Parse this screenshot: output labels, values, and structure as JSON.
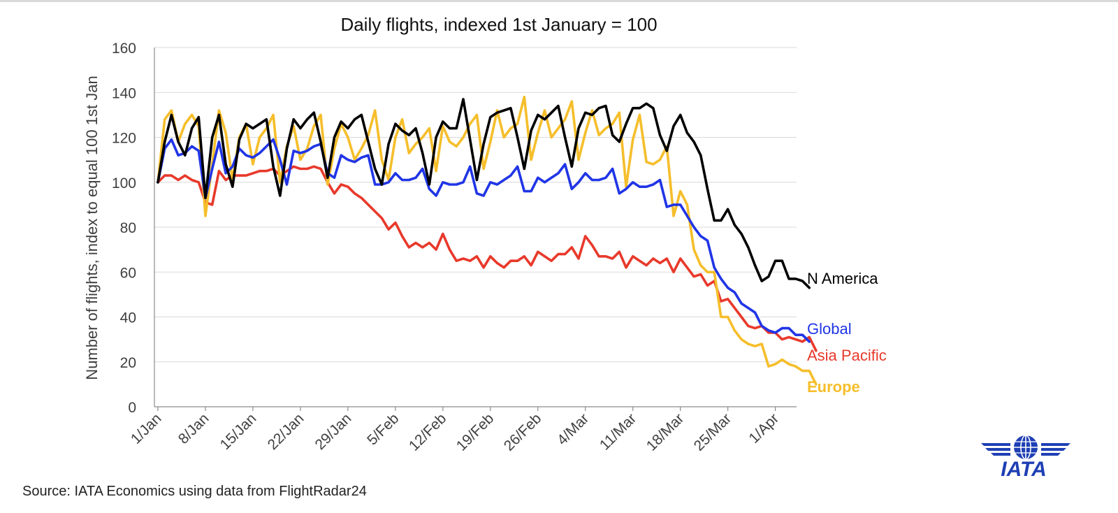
{
  "chart_data": {
    "type": "line",
    "title": "Daily flights, indexed 1st January = 100",
    "xlabel": "",
    "ylabel": "Number of flights, index to equal 100 1st Jan",
    "ylim": [
      0,
      160
    ],
    "yticks": [
      0,
      20,
      40,
      60,
      80,
      100,
      120,
      140,
      160
    ],
    "xrange": [
      0,
      97
    ],
    "xticks": [
      {
        "day": 0,
        "label": "1/Jan"
      },
      {
        "day": 7,
        "label": "8/Jan"
      },
      {
        "day": 14,
        "label": "15/Jan"
      },
      {
        "day": 21,
        "label": "22/Jan"
      },
      {
        "day": 28,
        "label": "29/Jan"
      },
      {
        "day": 35,
        "label": "5/Feb"
      },
      {
        "day": 42,
        "label": "12/Feb"
      },
      {
        "day": 49,
        "label": "19/Feb"
      },
      {
        "day": 56,
        "label": "26/Feb"
      },
      {
        "day": 63,
        "label": "4/Mar"
      },
      {
        "day": 70,
        "label": "11/Mar"
      },
      {
        "day": 77,
        "label": "18/Mar"
      },
      {
        "day": 84,
        "label": "25/Mar"
      },
      {
        "day": 91,
        "label": "1/Apr"
      }
    ],
    "grid": true,
    "x_unit": "days since 1 Jan",
    "series": [
      {
        "name": "Asia Pacific",
        "label": "Asia Pacific",
        "color": "#e8392b",
        "bold": false,
        "values": [
          100,
          103,
          103,
          101,
          103,
          101,
          100,
          91,
          90,
          105,
          101,
          103,
          103,
          103,
          104,
          105,
          105,
          106,
          103,
          105,
          107,
          106,
          106,
          107,
          106,
          100,
          95,
          99,
          98,
          95,
          93,
          90,
          87,
          84,
          79,
          82,
          76,
          71,
          73,
          71,
          73,
          70,
          77,
          70,
          65,
          66,
          65,
          67,
          62,
          67,
          64,
          62,
          65,
          65,
          67,
          63,
          69,
          67,
          65,
          68,
          68,
          71,
          66,
          76,
          72,
          67,
          67,
          66,
          69,
          62,
          67,
          65,
          63,
          66,
          64,
          66,
          60,
          66,
          62,
          58,
          59,
          54,
          56,
          47,
          48,
          44,
          40,
          36,
          35,
          36,
          33,
          33,
          30,
          31,
          30,
          29,
          31,
          25
        ]
      },
      {
        "name": "Europe",
        "label": "Europe",
        "color": "#f5be2b",
        "bold": true,
        "values": [
          100,
          128,
          132,
          118,
          126,
          130,
          125,
          85,
          108,
          132,
          122,
          101,
          120,
          126,
          108,
          120,
          124,
          130,
          100,
          116,
          125,
          110,
          115,
          125,
          130,
          99,
          115,
          126,
          120,
          110,
          115,
          121,
          132,
          110,
          101,
          120,
          128,
          113,
          117,
          120,
          124,
          105,
          125,
          118,
          116,
          120,
          126,
          130,
          106,
          118,
          132,
          120,
          124,
          126,
          138,
          110,
          122,
          132,
          120,
          124,
          128,
          136,
          110,
          122,
          132,
          121,
          124,
          126,
          131,
          98,
          119,
          130,
          109,
          108,
          110,
          116,
          85,
          96,
          90,
          70,
          63,
          60,
          60,
          40,
          40,
          34,
          30,
          28,
          27,
          28,
          18,
          19,
          21,
          19,
          18,
          16,
          16,
          10
        ]
      },
      {
        "name": "Global",
        "label": "Global",
        "color": "#2035e6",
        "bold": false,
        "values": [
          100,
          115,
          119,
          112,
          113,
          116,
          114,
          93,
          106,
          118,
          104,
          107,
          115,
          112,
          111,
          113,
          116,
          119,
          110,
          99,
          114,
          113,
          114,
          116,
          117,
          104,
          102,
          112,
          110,
          109,
          111,
          112,
          99,
          99,
          100,
          104,
          101,
          101,
          102,
          106,
          97,
          94,
          100,
          99,
          99,
          100,
          107,
          95,
          94,
          100,
          99,
          101,
          103,
          107,
          96,
          96,
          102,
          100,
          102,
          104,
          108,
          97,
          100,
          104,
          101,
          101,
          102,
          106,
          95,
          97,
          100,
          98,
          98,
          99,
          101,
          89,
          90,
          90,
          85,
          80,
          76,
          74,
          62,
          57,
          53,
          51,
          46,
          44,
          42,
          36,
          34,
          33,
          35,
          35,
          32,
          32,
          29
        ]
      },
      {
        "name": "N America",
        "label": "N America",
        "color": "#000000",
        "bold": false,
        "values": [
          100,
          118,
          130,
          118,
          112,
          124,
          129,
          93,
          120,
          130,
          108,
          98,
          119,
          126,
          124,
          126,
          128,
          107,
          94,
          115,
          128,
          124,
          128,
          131,
          118,
          102,
          120,
          127,
          124,
          128,
          130,
          118,
          106,
          99,
          117,
          126,
          123,
          121,
          124,
          113,
          99,
          120,
          127,
          124,
          124,
          137,
          119,
          101,
          117,
          129,
          131,
          132,
          133,
          120,
          106,
          123,
          130,
          128,
          131,
          134,
          120,
          107,
          124,
          131,
          130,
          133,
          134,
          121,
          118,
          126,
          133,
          133,
          135,
          133,
          121,
          114,
          125,
          130,
          122,
          118,
          112,
          97,
          83,
          83,
          88,
          81,
          77,
          71,
          63,
          56,
          58,
          65,
          65,
          57,
          57,
          56,
          53
        ]
      }
    ],
    "series_labels": {
      "N America": 0.3,
      "Global": 0.0,
      "Asia Pacific": 0.0,
      "Europe": 0.0
    }
  },
  "source": "Source: IATA Economics using data from FlightRadar24",
  "logo": {
    "text": "IATA",
    "color": "#1e3fb4"
  }
}
